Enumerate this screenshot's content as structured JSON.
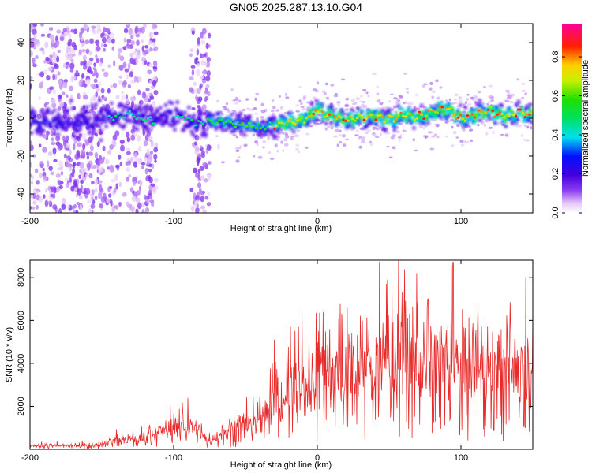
{
  "title": "GN05.2025.287.13.10.G04",
  "chart_data": [
    {
      "type": "heatmap",
      "name": "spectrogram",
      "xlabel": "Height of straight line (km)",
      "ylabel": "Frequency (Hz)",
      "xlim": [
        -200,
        150
      ],
      "ylim": [
        -50,
        50
      ],
      "xticks": [
        -200,
        -100,
        0,
        100
      ],
      "xtick_labels": [
        "-200",
        "-100",
        "0",
        "100"
      ],
      "yticks": [
        -40,
        -20,
        0,
        20,
        40
      ],
      "ytick_labels": [
        "-40",
        "-20",
        "0",
        "20",
        "40"
      ],
      "ridge": {
        "x": [
          -145,
          -130,
          -115,
          -100,
          -85,
          -70,
          -55,
          -40,
          -25,
          -10,
          0,
          10,
          20,
          30,
          40,
          50,
          60,
          70,
          80,
          90,
          100,
          110,
          120,
          130,
          140,
          150
        ],
        "y": [
          1,
          2,
          -1,
          2,
          -3,
          -1,
          -3,
          -5,
          -3,
          -1,
          4,
          1,
          -1,
          0,
          1,
          -1,
          2,
          0,
          3,
          5,
          0,
          2,
          4,
          1,
          3,
          2
        ]
      },
      "colorbar": {
        "label": "Normalized spectral amplitude",
        "range": [
          0.0,
          0.97
        ],
        "ticks": [
          0.0,
          0.2,
          0.4,
          0.6,
          0.8
        ],
        "tick_labels": [
          "0.0",
          "0.2",
          "0.4",
          "0.6",
          "0.8"
        ]
      }
    },
    {
      "type": "line",
      "name": "snr",
      "xlabel": "Height of straight line (km)",
      "ylabel": "SNR (10 * v/v)",
      "xlim": [
        -200,
        150
      ],
      "ylim": [
        0,
        8800
      ],
      "xticks": [
        -200,
        -100,
        0,
        100
      ],
      "xtick_labels": [
        "-200",
        "-100",
        "0",
        "100"
      ],
      "yticks": [
        2000,
        4000,
        6000,
        8000
      ],
      "ytick_labels": [
        "2000",
        "4000",
        "6000",
        "8000"
      ],
      "color": "#e82a2a",
      "envelope": {
        "x": [
          -200,
          -150,
          -140,
          -125,
          -115,
          -100,
          -90,
          -75,
          -70,
          -60,
          -55,
          -45,
          -35,
          -30,
          -25,
          -20,
          -10,
          0,
          10,
          20,
          40,
          50,
          60,
          70,
          80,
          90,
          100,
          110,
          120,
          130,
          140,
          150
        ],
        "y": [
          150,
          200,
          500,
          450,
          750,
          1000,
          1200,
          350,
          650,
          950,
          1000,
          1200,
          1500,
          2700,
          2000,
          2700,
          3000,
          3300,
          3500,
          3100,
          3900,
          4100,
          4200,
          4300,
          3600,
          4300,
          3700,
          3600,
          3900,
          3400,
          3900,
          3800
        ]
      },
      "peaks": [
        {
          "x": 94.5,
          "y": 8700
        },
        {
          "x": 59,
          "y": 7300
        },
        {
          "x": 52,
          "y": 7700
        },
        {
          "x": 77,
          "y": 7000
        },
        {
          "x": 17,
          "y": 6300
        },
        {
          "x": 30,
          "y": 6200
        }
      ]
    }
  ]
}
